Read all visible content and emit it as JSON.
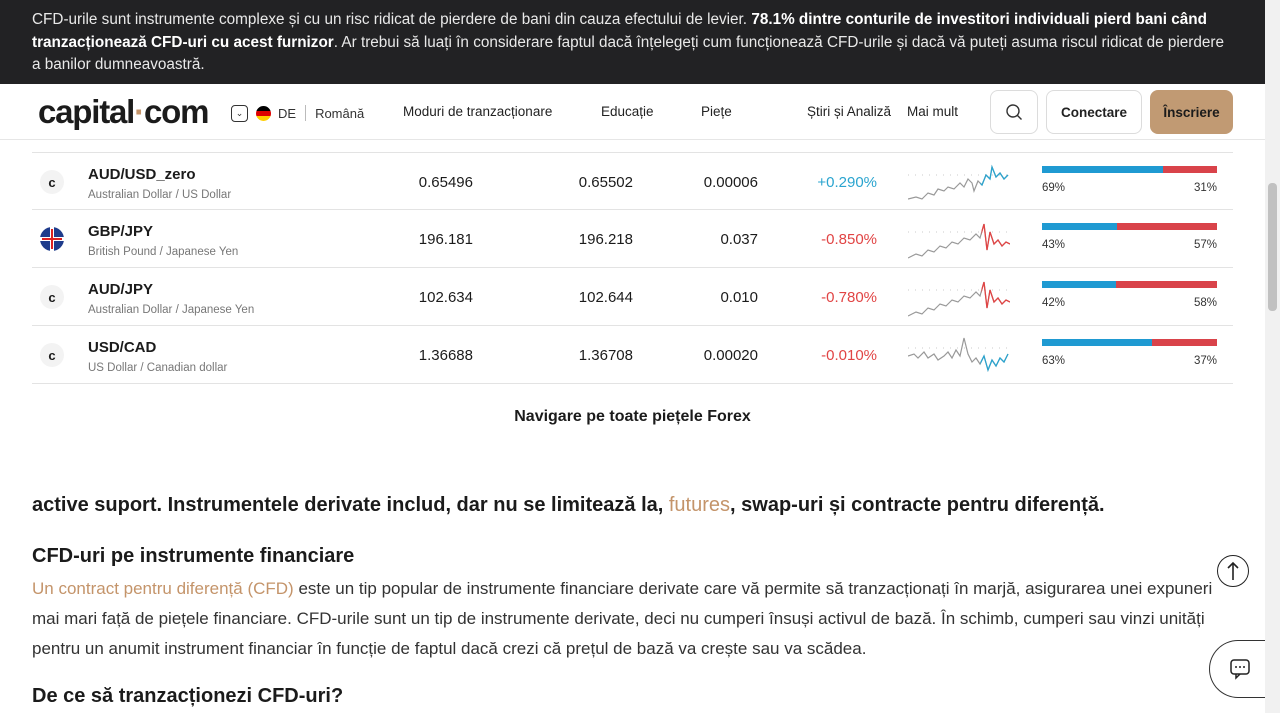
{
  "risk_banner": {
    "text_before": "CFD-urile sunt instrumente complexe și cu un risc ridicat de pierdere de bani din cauza efectului de levier. ",
    "text_bold": "78.1% dintre conturile de investitori individuali pierd bani când tranzacționează CFD-uri cu acest furnizor",
    "text_after": ". Ar trebui să luați în considerare faptul dacă înțelegeți cum funcționează CFD-urile și dacă vă puteți asuma riscul ridicat de pierdere a banilor dumneavoastră."
  },
  "header": {
    "logo_left": "capital",
    "logo_dot": "·",
    "logo_right": "com",
    "lang_code": "DE",
    "lang_name": "Română",
    "nav": [
      "Moduri de tranzacționare",
      "Educație",
      "Piețe",
      "Știri și Analiză",
      "Mai mult"
    ],
    "login": "Conectare",
    "signup": "Înscriere"
  },
  "markets": [
    {
      "icon": "capital-icon",
      "symbol": "AUD/USD_zero",
      "description": "Australian Dollar / US Dollar",
      "sell": "0.65496",
      "buy": "0.65502",
      "spread": "0.00006",
      "change": "+0.290%",
      "trend": "up",
      "buy_pct": 69,
      "sell_pct": 31,
      "buy_label": "69%",
      "sell_label": "31%"
    },
    {
      "icon": "uk-flag-icon",
      "symbol": "GBP/JPY",
      "description": "British Pound / Japanese Yen",
      "sell": "196.181",
      "buy": "196.218",
      "spread": "0.037",
      "change": "-0.850%",
      "trend": "down",
      "buy_pct": 43,
      "sell_pct": 57,
      "buy_label": "43%",
      "sell_label": "57%"
    },
    {
      "icon": "capital-icon",
      "symbol": "AUD/JPY",
      "description": "Australian Dollar / Japanese Yen",
      "sell": "102.634",
      "buy": "102.644",
      "spread": "0.010",
      "change": "-0.780%",
      "trend": "down",
      "buy_pct": 42,
      "sell_pct": 58,
      "buy_label": "42%",
      "sell_label": "58%"
    },
    {
      "icon": "capital-icon",
      "symbol": "USD/CAD",
      "description": "US Dollar / Canadian dollar",
      "sell": "1.36688",
      "buy": "1.36708",
      "spread": "0.00020",
      "change": "-0.010%",
      "trend": "flat",
      "buy_pct": 63,
      "sell_pct": 37,
      "buy_label": "63%",
      "sell_label": "37%"
    }
  ],
  "all_forex_link": "Navigare pe toate piețele Forex",
  "article": {
    "intro_before": "active suport. Instrumentele derivate includ, dar nu se limitează la, ",
    "intro_link": "futures",
    "intro_after": ", swap-uri și contracte pentru diferență.",
    "h2_cfd": "CFD-uri pe instrumente financiare",
    "p_link": "Un contract pentru diferență (CFD)",
    "p_text": " este un tip popular de instrumente financiare derivate care vă permite să tranzacționați în marjă, asigurarea unei expuneri mai mari față de piețele financiare. CFD-urile sunt un tip de instrumente derivate, deci nu cumperi însuși activul de bază. În schimb, cumperi sau vinzi unități pentru un anumit instrument financiar în funcție de faptul dacă crezi că prețul de bază va crește sau va scădea.",
    "h2_why": "De ce să tranzacționezi CFD-uri?"
  },
  "colors": {
    "accent": "#c4946a",
    "positive": "#2aa4cf",
    "negative": "#e14444",
    "buy_bar": "#1f9ad2",
    "sell_bar": "#d9434a"
  }
}
